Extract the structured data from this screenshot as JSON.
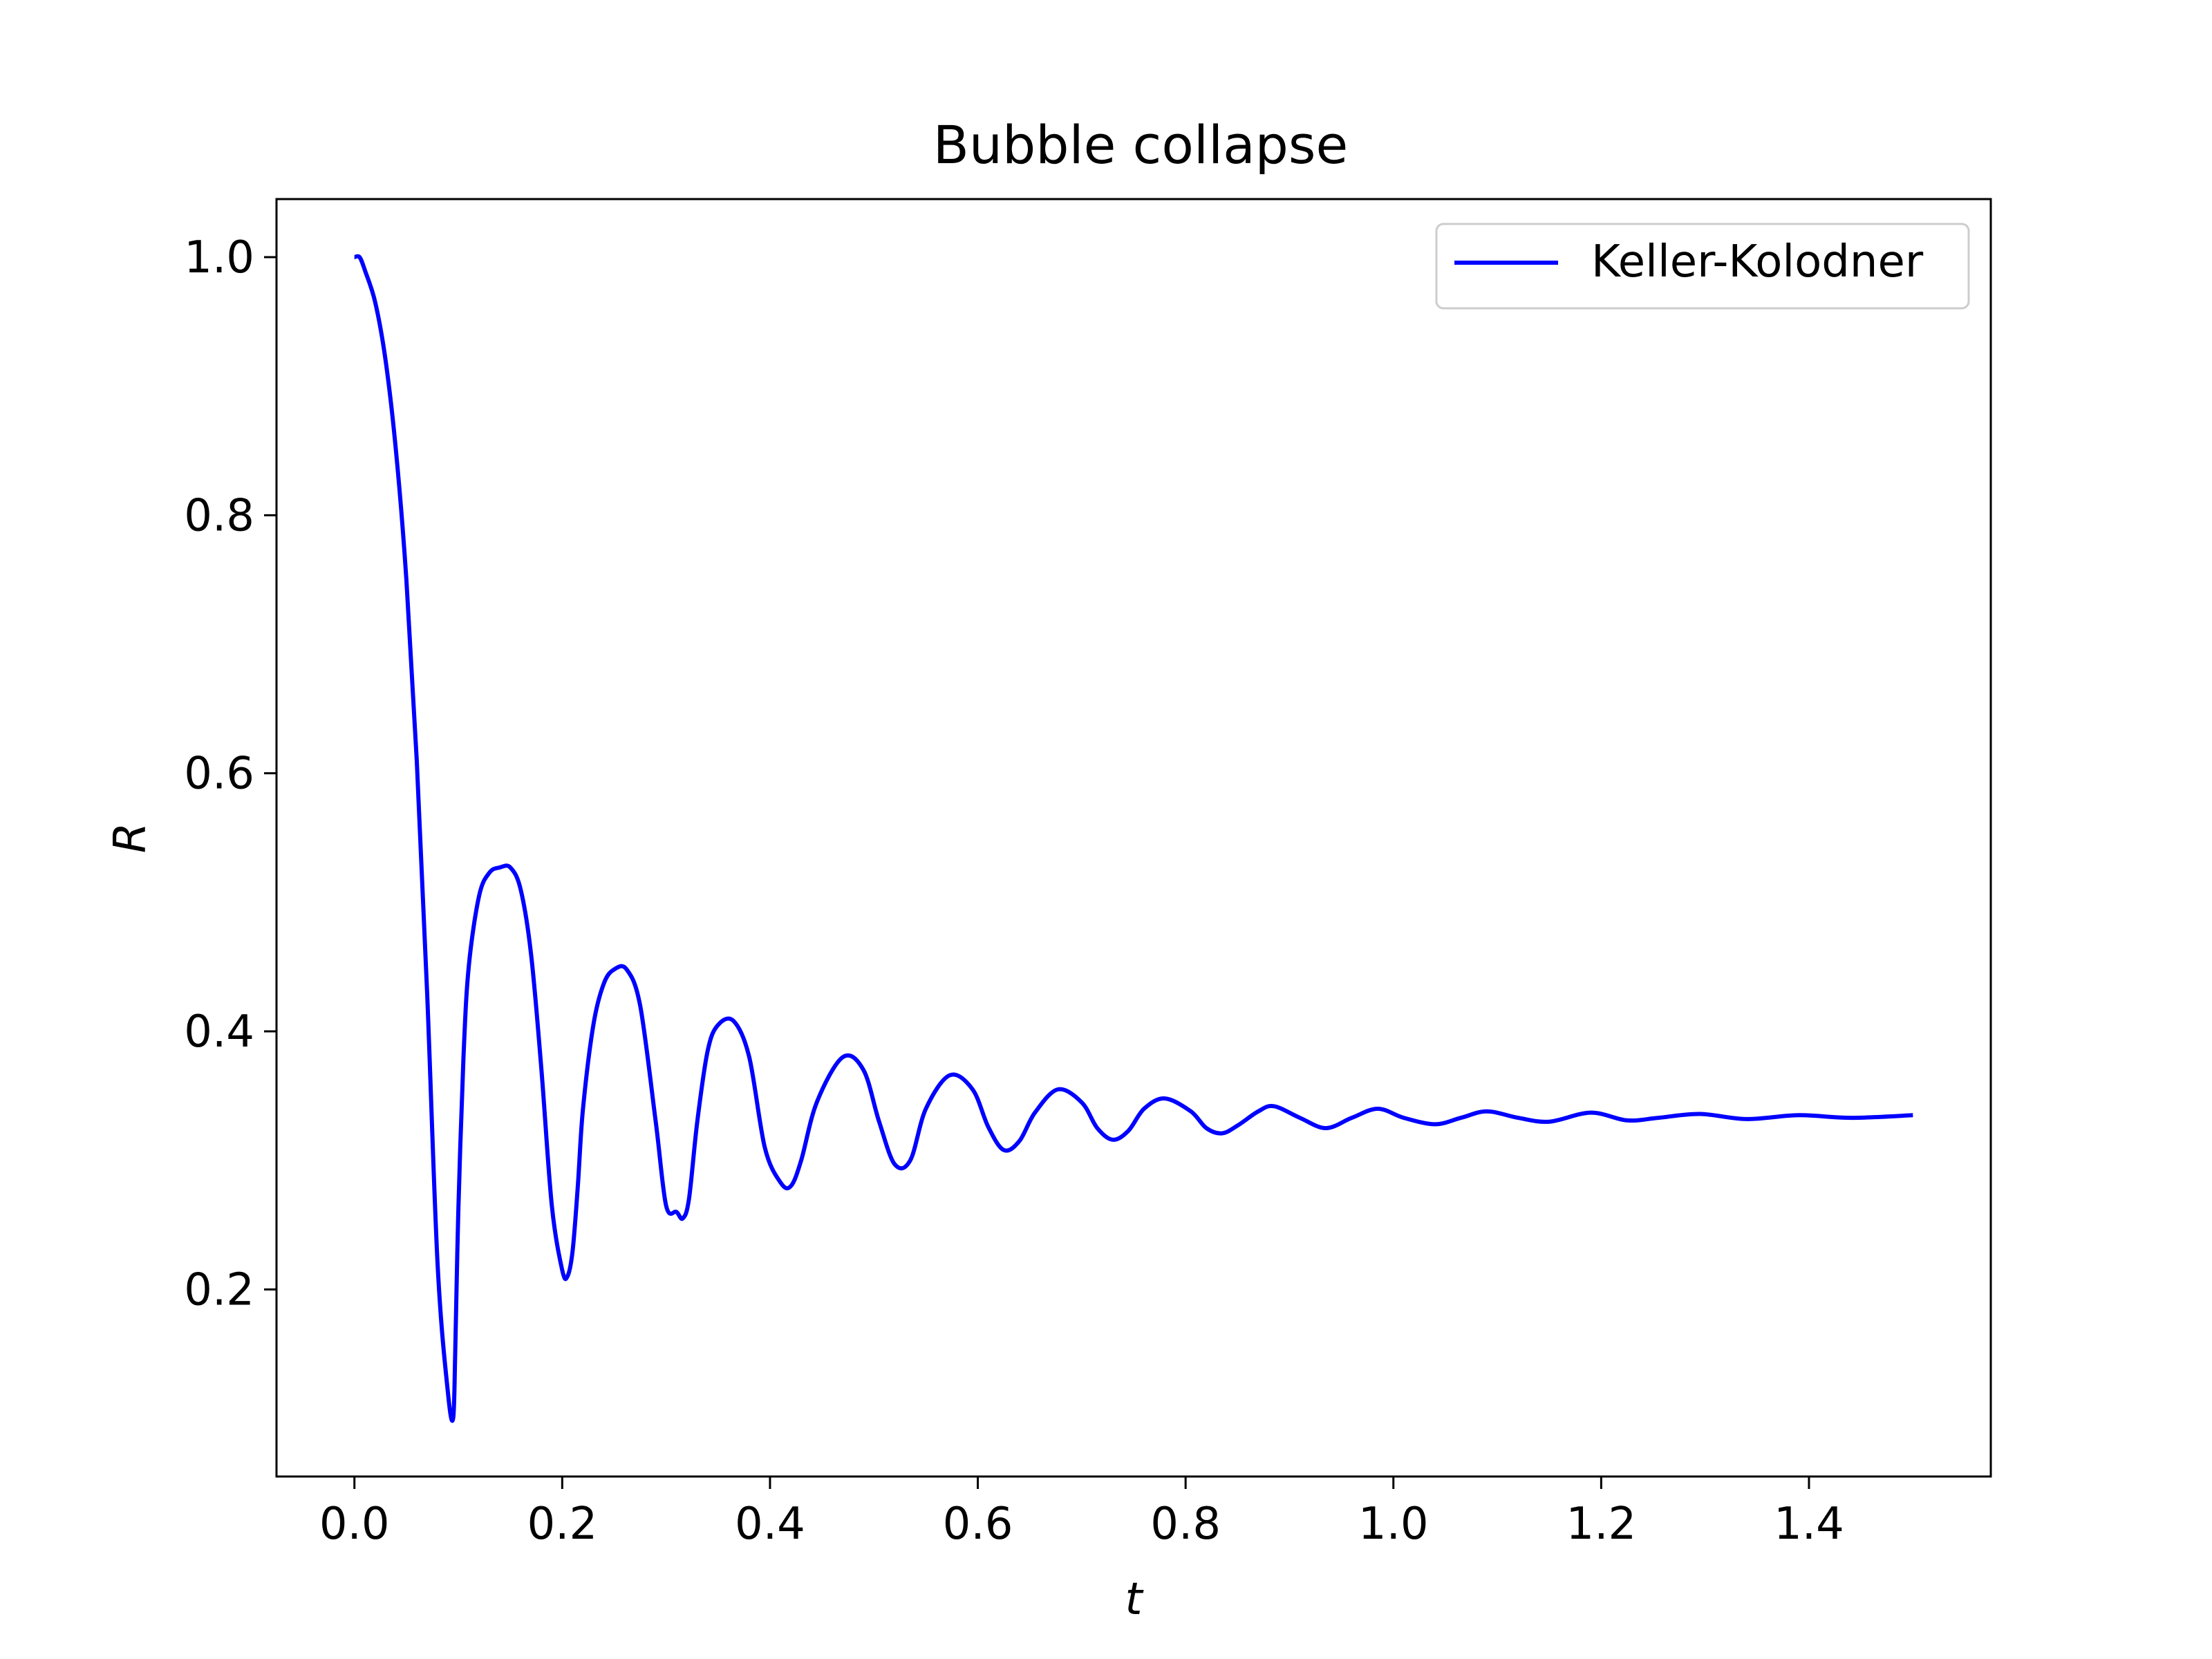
{
  "chart_data": {
    "type": "line",
    "title": "Bubble collapse",
    "xlabel": "t",
    "ylabel": "R",
    "xlim": [
      -0.075,
      1.575
    ],
    "ylim": [
      0.055,
      1.045
    ],
    "xticks": [
      0.0,
      0.2,
      0.4,
      0.6,
      0.8,
      1.0,
      1.2,
      1.4
    ],
    "xtick_labels": [
      "0.0",
      "0.2",
      "0.4",
      "0.6",
      "0.8",
      "1.0",
      "1.2",
      "1.4"
    ],
    "yticks": [
      0.2,
      0.4,
      0.6,
      0.8,
      1.0
    ],
    "ytick_labels": [
      "0.2",
      "0.4",
      "0.6",
      "0.8",
      "1.0"
    ],
    "grid": false,
    "legend_position": "top-right",
    "series": [
      {
        "name": "Keller-Kolodner",
        "color": "#0000ff",
        "x": [
          0,
          0.005,
          0.01,
          0.02,
          0.03,
          0.04,
          0.05,
          0.06,
          0.07,
          0.08,
          0.09,
          0.095,
          0.097,
          0.1,
          0.105,
          0.11,
          0.12,
          0.13,
          0.14,
          0.15,
          0.16,
          0.17,
          0.18,
          0.19,
          0.2,
          0.205,
          0.21,
          0.215,
          0.22,
          0.23,
          0.24,
          0.25,
          0.262,
          0.275,
          0.29,
          0.3,
          0.31,
          0.316,
          0.322,
          0.33,
          0.34,
          0.35,
          0.365,
          0.38,
          0.395,
          0.41,
          0.42,
          0.43,
          0.445,
          0.47,
          0.49,
          0.505,
          0.52,
          0.535,
          0.55,
          0.573,
          0.595,
          0.61,
          0.625,
          0.64,
          0.655,
          0.677,
          0.7,
          0.715,
          0.73,
          0.745,
          0.76,
          0.78,
          0.805,
          0.82,
          0.835,
          0.85,
          0.87,
          0.885,
          0.91,
          0.935,
          0.96,
          0.985,
          1.01,
          1.04,
          1.065,
          1.09,
          1.12,
          1.15,
          1.19,
          1.225,
          1.255,
          1.295,
          1.34,
          1.39,
          1.44,
          1.5
        ],
        "y": [
          1.0,
          1.0,
          0.99,
          0.965,
          0.92,
          0.85,
          0.75,
          0.61,
          0.43,
          0.22,
          0.12,
          0.1,
          0.15,
          0.26,
          0.38,
          0.45,
          0.505,
          0.523,
          0.527,
          0.527,
          0.51,
          0.46,
          0.37,
          0.265,
          0.215,
          0.21,
          0.23,
          0.28,
          0.34,
          0.405,
          0.437,
          0.448,
          0.448,
          0.42,
          0.33,
          0.265,
          0.26,
          0.255,
          0.27,
          0.33,
          0.385,
          0.405,
          0.408,
          0.38,
          0.31,
          0.283,
          0.28,
          0.3,
          0.345,
          0.38,
          0.37,
          0.33,
          0.297,
          0.3,
          0.34,
          0.366,
          0.355,
          0.326,
          0.308,
          0.315,
          0.337,
          0.355,
          0.345,
          0.325,
          0.316,
          0.323,
          0.34,
          0.348,
          0.338,
          0.325,
          0.321,
          0.327,
          0.338,
          0.342,
          0.333,
          0.325,
          0.333,
          0.34,
          0.333,
          0.328,
          0.333,
          0.338,
          0.333,
          0.33,
          0.337,
          0.331,
          0.333,
          0.336,
          0.332,
          0.335,
          0.333,
          0.335
        ]
      }
    ]
  }
}
